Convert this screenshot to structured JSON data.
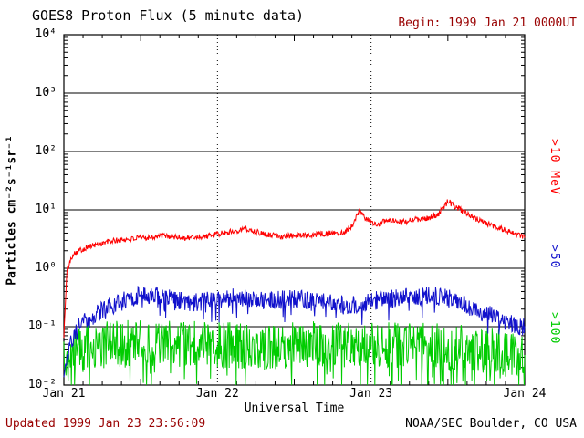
{
  "header": {
    "title": "GOES8 Proton Flux (5 minute data)",
    "begin_label": "Begin: 1999 Jan 21 0000UT"
  },
  "footer": {
    "updated": "Updated 1999 Jan 23 23:56:09",
    "source": "NOAA/SEC Boulder, CO USA"
  },
  "colors": {
    "annotation": "#990000",
    "axis": "#000000",
    "background": "#ffffff"
  },
  "chart_data": {
    "type": "line",
    "title": "GOES8 Proton Flux (5 minute data)",
    "xlabel": "Universal Time",
    "ylabel": "Particles cm⁻²s⁻¹sr⁻¹",
    "x_range_days": [
      0,
      3
    ],
    "y_range": [
      0.01,
      10000
    ],
    "y_scale": "log",
    "x_tick_labels": [
      "Jan 21",
      "Jan 22",
      "Jan 23",
      "Jan 24"
    ],
    "x_ticks_days": [
      0,
      1,
      2,
      3
    ],
    "y_tick_labels": [
      "10⁴",
      "10³",
      "10²",
      "10¹",
      "10⁰",
      "10⁻¹",
      "10⁻²"
    ],
    "y_tick_exponents": [
      4,
      3,
      2,
      1,
      0,
      -1,
      -2
    ],
    "grid": {
      "horizontal": "solid line at each decade",
      "vertical": "dotted line at each day boundary"
    },
    "cadence_minutes": 5,
    "series": [
      {
        "name": "protons_gt_10MeV",
        "label": ">10 MeV",
        "color": "#ff0000",
        "seed": 101,
        "noise_log10": 0.05,
        "spike_prob": 0.0,
        "spike_log10": 0.0,
        "anchors_day_value": [
          [
            0,
            0.07
          ],
          [
            0.02,
            0.9
          ],
          [
            0.06,
            1.8
          ],
          [
            0.15,
            2.3
          ],
          [
            0.3,
            2.9
          ],
          [
            0.5,
            3.3
          ],
          [
            0.65,
            3.6
          ],
          [
            0.8,
            3.3
          ],
          [
            0.95,
            3.6
          ],
          [
            1.1,
            4.3
          ],
          [
            1.18,
            4.8
          ],
          [
            1.28,
            4.0
          ],
          [
            1.42,
            3.5
          ],
          [
            1.55,
            3.7
          ],
          [
            1.7,
            3.9
          ],
          [
            1.82,
            4.1
          ],
          [
            1.88,
            5.5
          ],
          [
            1.92,
            9.5
          ],
          [
            1.97,
            7.0
          ],
          [
            2.03,
            5.5
          ],
          [
            2.1,
            6.8
          ],
          [
            2.18,
            6.0
          ],
          [
            2.28,
            6.8
          ],
          [
            2.38,
            7.2
          ],
          [
            2.44,
            8.5
          ],
          [
            2.5,
            14.0
          ],
          [
            2.57,
            10.5
          ],
          [
            2.64,
            8.0
          ],
          [
            2.74,
            6.0
          ],
          [
            2.84,
            4.8
          ],
          [
            2.93,
            4.0
          ],
          [
            3,
            3.4
          ]
        ]
      },
      {
        "name": "protons_gt_50MeV",
        "label": ">50",
        "color": "#1111cc",
        "seed": 202,
        "noise_log10": 0.16,
        "spike_prob": 0.04,
        "spike_log10": -0.25,
        "anchors_day_value": [
          [
            0,
            0.018
          ],
          [
            0.04,
            0.05
          ],
          [
            0.1,
            0.1
          ],
          [
            0.2,
            0.16
          ],
          [
            0.3,
            0.22
          ],
          [
            0.42,
            0.3
          ],
          [
            0.52,
            0.37
          ],
          [
            0.62,
            0.33
          ],
          [
            0.72,
            0.29
          ],
          [
            0.85,
            0.26
          ],
          [
            1,
            0.3
          ],
          [
            1.15,
            0.32
          ],
          [
            1.3,
            0.27
          ],
          [
            1.5,
            0.3
          ],
          [
            1.7,
            0.26
          ],
          [
            1.85,
            0.23
          ],
          [
            1.95,
            0.26
          ],
          [
            2.1,
            0.3
          ],
          [
            2.25,
            0.32
          ],
          [
            2.4,
            0.35
          ],
          [
            2.52,
            0.3
          ],
          [
            2.65,
            0.21
          ],
          [
            2.8,
            0.15
          ],
          [
            2.9,
            0.12
          ],
          [
            3,
            0.095
          ]
        ]
      },
      {
        "name": "protons_gt_100MeV",
        "label": ">100",
        "color": "#00cc00",
        "seed": 303,
        "noise_log10": 0.4,
        "spike_prob": 0.1,
        "spike_log10": -0.45,
        "anchors_day_value": [
          [
            0,
            0.025
          ],
          [
            0.1,
            0.042
          ],
          [
            0.3,
            0.05
          ],
          [
            0.5,
            0.055
          ],
          [
            0.7,
            0.05
          ],
          [
            1,
            0.05
          ],
          [
            1.3,
            0.046
          ],
          [
            1.6,
            0.05
          ],
          [
            1.9,
            0.046
          ],
          [
            2.2,
            0.05
          ],
          [
            2.5,
            0.046
          ],
          [
            2.7,
            0.04
          ],
          [
            2.85,
            0.036
          ],
          [
            3,
            0.03
          ]
        ]
      }
    ]
  }
}
